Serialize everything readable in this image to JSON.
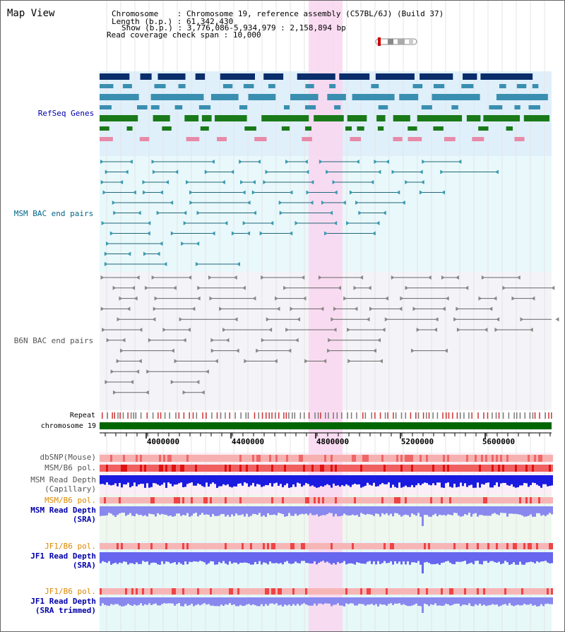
{
  "title": "Map View",
  "header": {
    "chrom_label": "Chromosome",
    "chrom_value": "Chromosome 19, reference assembly (C57BL/6J) (Build 37)",
    "length_label": "Length (b.p.)",
    "length_value": "61,342,430",
    "show_label": "Show (b.p.)",
    "show_value": "3,776,086-5,934,979 : 2,158,894 bp",
    "span_label": "Read coverage check span",
    "span_value": "10,000"
  },
  "tracks": {
    "refseq": "RefSeq Genes",
    "msm_bac": "MSM BAC end pairs",
    "b6n_bac": "B6N BAC end pairs",
    "repeat": "Repeat",
    "chromosome": "chromosome 19",
    "dbsnp": "dbSNP(Mouse)",
    "msm_pol_1": "MSM/B6 pol.",
    "msm_depth_cap_1": "MSM Read Depth",
    "msm_depth_cap_2": "(Capillary)",
    "msm_pol_2": "MSM/B6 pol.",
    "msm_depth_sra_1": "MSM Read Depth",
    "msm_depth_sra_2": "(SRA)",
    "jf1_pol_1": "JF1/B6 pol.",
    "jf1_depth_sra_1": "JF1 Read Depth",
    "jf1_depth_sra_2": "(SRA)",
    "jf1_pol_2": "JF1/B6 pol.",
    "jf1_depth_trim_1": "JF1 Read Depth",
    "jf1_depth_trim_2": "(SRA trimmed)"
  },
  "axis_ticks": [
    "4000000",
    "4400000",
    "4800000",
    "5200000",
    "5600000"
  ],
  "colors": {
    "refseq_label": "#0000aa",
    "msm_label": "#006688",
    "b6n_label": "#555555",
    "orange_label": "#dd8800",
    "navy_label": "#0000aa",
    "highlight": "#f9d6f0",
    "chromosome_bar": "#006600"
  }
}
